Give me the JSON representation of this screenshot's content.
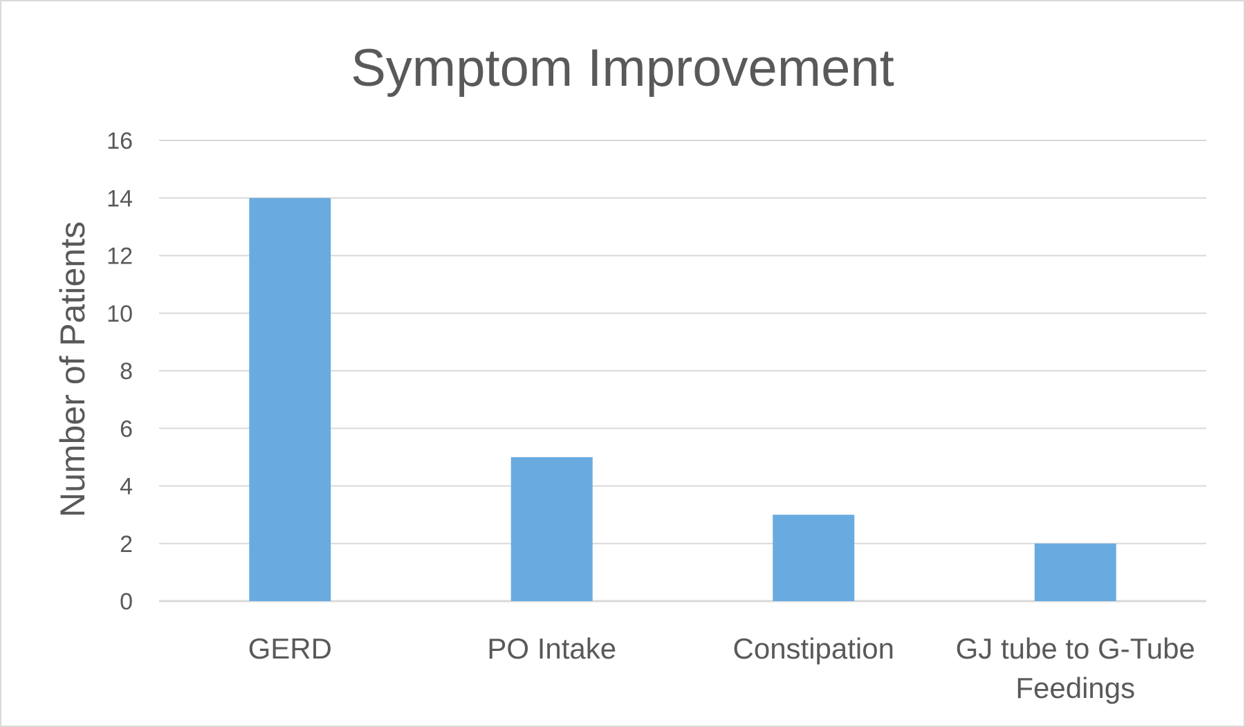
{
  "chart_data": {
    "type": "bar",
    "title": "Symptom Improvement",
    "xlabel": "",
    "ylabel": "Number of Patients",
    "categories": [
      [
        "GERD"
      ],
      [
        "PO Intake"
      ],
      [
        "Constipation"
      ],
      [
        "GJ tube to G-Tube",
        "Feedings"
      ]
    ],
    "values": [
      14,
      5,
      3,
      2
    ],
    "ylim": [
      0,
      16
    ],
    "yticks": [
      "0",
      "2",
      "4",
      "6",
      "8",
      "10",
      "12",
      "14",
      "16"
    ],
    "grid": true,
    "legend": "none",
    "bar_color": "#6aabdf",
    "grid_color": "#d9d9d9",
    "text_color": "#595959"
  }
}
